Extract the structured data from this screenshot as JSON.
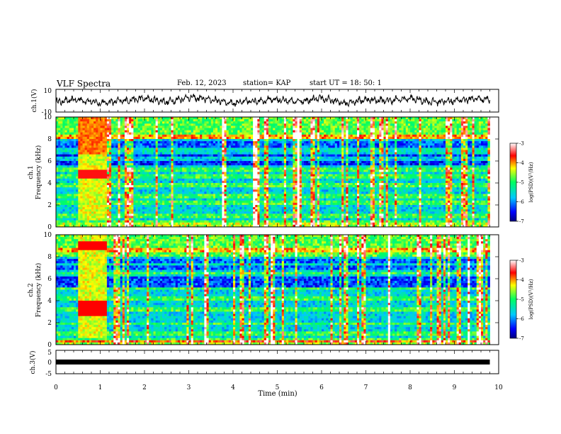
{
  "header": {
    "title": "VLF Spectra",
    "date": "Feb. 12, 2023",
    "station": "station= KAP",
    "start": "start  UT =   18: 50: 1"
  },
  "colorbar_label": "log(PSD)(V²/Hz)",
  "chart_data": [
    {
      "type": "line",
      "ylabel": "ch.1(V)",
      "xlim": [
        0,
        10
      ],
      "ylim": [
        -10,
        10
      ],
      "y_ticks": [
        "10",
        "-10"
      ],
      "note_values": "noisy waveform oscillating roughly between -7 and 7 V over 0-9.8 min",
      "x": [
        0,
        0.5,
        1,
        1.5,
        2,
        2.5,
        3,
        3.5,
        4,
        4.5,
        5,
        5.5,
        6,
        6.5,
        7,
        7.5,
        8,
        8.5,
        9,
        9.5,
        9.8
      ],
      "values": [
        -1,
        1,
        -2,
        0,
        2,
        -1,
        3,
        1,
        -2,
        0,
        1,
        -1,
        2,
        -2,
        1,
        0,
        2,
        -1,
        0,
        2,
        1
      ]
    },
    {
      "type": "heatmap",
      "ylabel": "ch.1\nFrequency (kHz)",
      "xlim": [
        0,
        10
      ],
      "ylim": [
        0,
        10
      ],
      "y_ticks": [
        "0",
        "2",
        "4",
        "6",
        "8",
        "10"
      ],
      "colorbar": {
        "min": -7,
        "max": -3,
        "ticks": [
          "-3",
          "-4",
          "-5",
          "-6",
          "-7"
        ]
      },
      "data_extent_min": [
        0,
        9.8
      ]
    },
    {
      "type": "heatmap",
      "ylabel": "ch.2\nFrequency (kHz)",
      "xlim": [
        0,
        10
      ],
      "ylim": [
        0,
        10
      ],
      "y_ticks": [
        "0",
        "2",
        "4",
        "6",
        "8",
        "10"
      ],
      "colorbar": {
        "min": -7,
        "max": -3,
        "ticks": [
          "-3",
          "-4",
          "-5",
          "-6",
          "-7"
        ]
      },
      "data_extent_min": [
        0,
        9.8
      ]
    },
    {
      "type": "line",
      "ylabel": "ch.3(V)",
      "xlim": [
        0,
        10
      ],
      "ylim": [
        -5,
        5
      ],
      "y_ticks": [
        "5",
        "0",
        "-5"
      ],
      "x": [
        0,
        9.8
      ],
      "values": [
        0,
        0
      ]
    }
  ],
  "x_axis": {
    "label": "Time  (min)",
    "ticks": [
      "0",
      "1",
      "2",
      "3",
      "4",
      "5",
      "6",
      "7",
      "8",
      "9",
      "10"
    ]
  }
}
